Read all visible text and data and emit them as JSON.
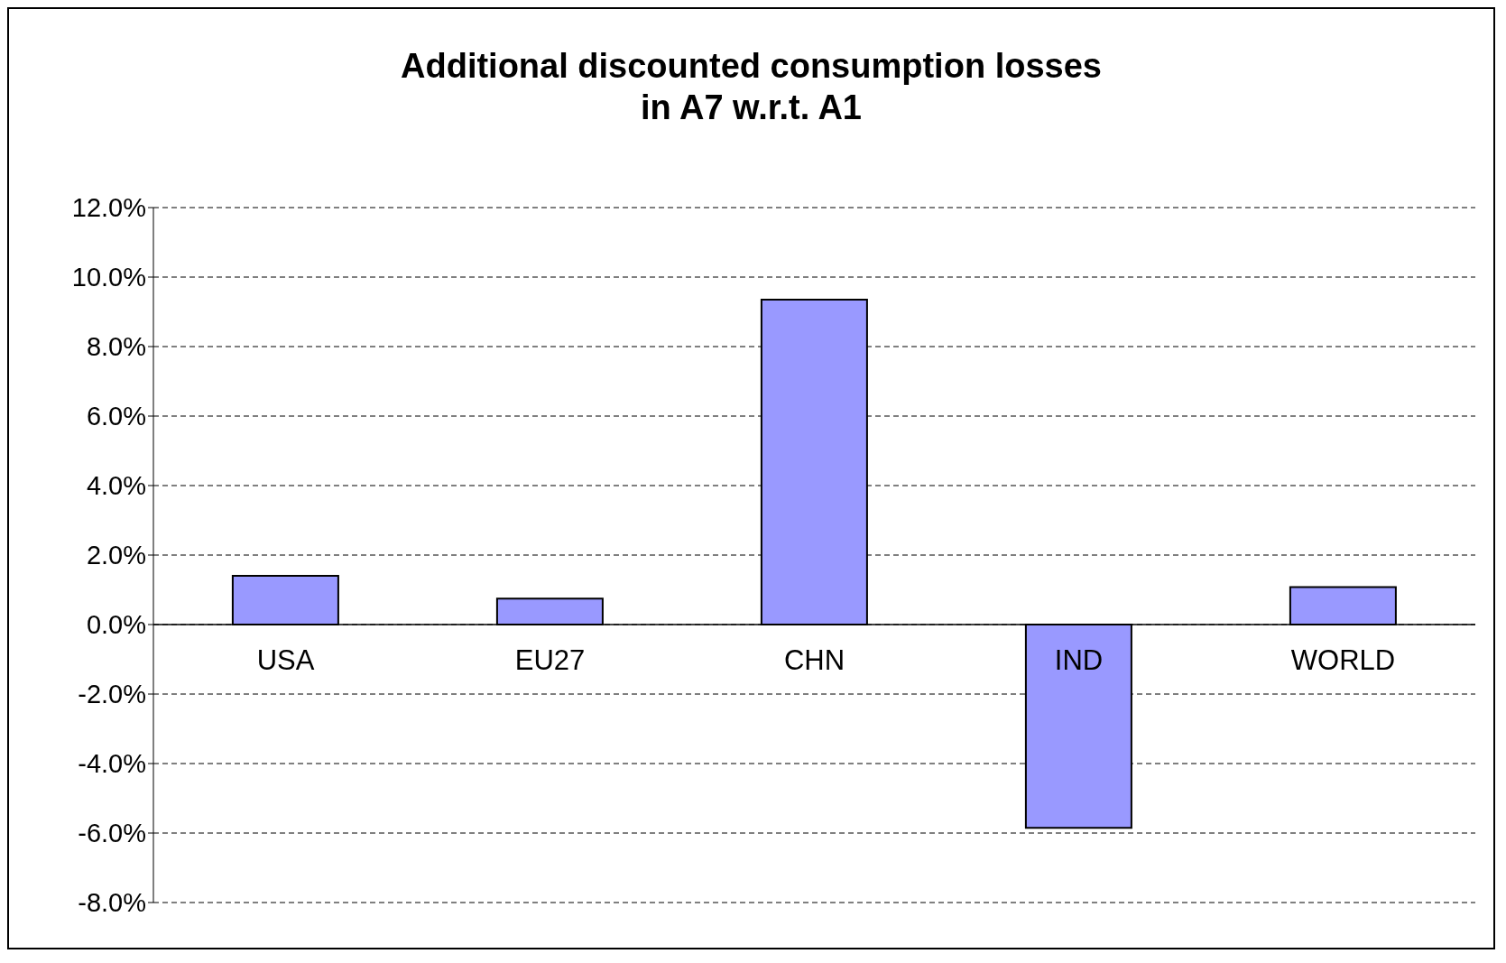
{
  "chart_data": {
    "type": "bar",
    "title": "Additional discounted consumption losses\nin A7 w.r.t. A1",
    "categories": [
      "USA",
      "EU27",
      "CHN",
      "IND",
      "WORLD"
    ],
    "values": [
      1.4,
      0.75,
      9.35,
      -5.85,
      1.08
    ],
    "color": "#9999ff",
    "ylim": [
      -8,
      12
    ],
    "yticks": [
      {
        "value": -8,
        "label": "-8.0%"
      },
      {
        "value": -6,
        "label": "-6.0%"
      },
      {
        "value": -4,
        "label": "-4.0%"
      },
      {
        "value": -2,
        "label": "-2.0%"
      },
      {
        "value": 0,
        "label": "0.0%"
      },
      {
        "value": 2,
        "label": "2.0%"
      },
      {
        "value": 4,
        "label": "4.0%"
      },
      {
        "value": 6,
        "label": "6.0%"
      },
      {
        "value": 8,
        "label": "8.0%"
      },
      {
        "value": 10,
        "label": "10.0%"
      },
      {
        "value": 12,
        "label": "12.0%"
      }
    ],
    "grid": "y"
  }
}
